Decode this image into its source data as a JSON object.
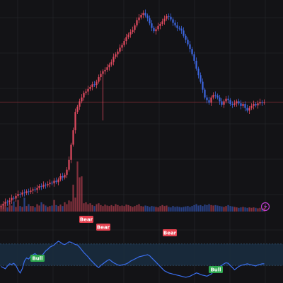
{
  "chart_data": [
    {
      "type": "candlestick",
      "x": [
        0,
        1,
        2,
        3,
        4,
        5,
        6,
        7,
        8,
        9,
        10,
        11,
        12,
        13,
        14,
        15,
        16,
        17,
        18,
        19,
        20,
        21,
        22,
        23,
        24,
        25,
        26,
        27,
        28,
        29,
        30,
        31,
        32,
        33,
        34,
        35,
        36,
        37,
        38,
        39,
        40,
        41,
        42,
        43,
        44,
        45,
        46,
        47,
        48,
        49,
        50,
        51,
        52,
        53,
        54,
        55,
        56,
        57,
        58,
        59,
        60,
        61,
        62,
        63,
        64,
        65,
        66,
        67,
        68,
        69,
        70,
        71,
        72,
        73,
        74,
        75,
        76,
        77,
        78,
        79,
        80,
        81,
        82,
        83,
        84,
        85,
        86,
        87,
        88,
        89,
        90,
        91,
        92,
        93,
        94,
        95,
        96,
        97,
        98,
        99,
        100,
        101,
        102,
        103,
        104,
        105,
        106,
        107,
        108,
        109,
        110,
        111,
        112,
        113,
        114,
        115,
        116,
        117,
        118,
        119,
        120,
        121,
        122,
        123,
        124
      ],
      "close": [
        25,
        28,
        31,
        30,
        33,
        37,
        36,
        40,
        43,
        42,
        45,
        44,
        47,
        46,
        48,
        50,
        49,
        52,
        55,
        54,
        57,
        56,
        58,
        60,
        59,
        63,
        61,
        65,
        70,
        68,
        72,
        80,
        95,
        118,
        140,
        168,
        176,
        184,
        190,
        197,
        199,
        203,
        206,
        210,
        209,
        214,
        221,
        226,
        230,
        232,
        236,
        240,
        244,
        252,
        256,
        260,
        266,
        270,
        276,
        282,
        286,
        290,
        293,
        300,
        308,
        312,
        316,
        319,
        315,
        311,
        303,
        296,
        291,
        294,
        299,
        302,
        306,
        310,
        314,
        313,
        309,
        304,
        300,
        296,
        295,
        292,
        284,
        278,
        271,
        264,
        256,
        246,
        234,
        224,
        214,
        202,
        190,
        186,
        182,
        190,
        194,
        193,
        190,
        184,
        179,
        184,
        188,
        186,
        180,
        179,
        181,
        184,
        181,
        177,
        180,
        174,
        170,
        174,
        177,
        180,
        178,
        181,
        183,
        182,
        183
      ],
      "note": "Vertical scale not printed; values are relative price levels on the chart."
    },
    {
      "type": "bar",
      "name": "volume",
      "values": [
        10,
        12,
        16,
        9,
        18,
        13,
        22,
        10,
        25,
        12,
        10,
        30,
        12,
        16,
        12,
        12,
        9,
        16,
        13,
        20,
        16,
        13,
        10,
        12,
        13,
        25,
        14,
        12,
        15,
        12,
        20,
        16,
        24,
        22,
        58,
        30,
        108,
        74,
        76,
        18,
        20,
        16,
        18,
        14,
        12,
        16,
        18,
        14,
        12,
        15,
        13,
        12,
        14,
        12,
        16,
        14,
        12,
        13,
        12,
        15,
        14,
        12,
        10,
        12,
        14,
        16,
        12,
        11,
        13,
        12,
        10,
        12,
        11,
        10,
        9,
        12,
        14,
        12,
        13,
        10,
        9,
        12,
        10,
        11,
        10,
        9,
        10,
        11,
        12,
        10,
        12,
        14,
        16,
        13,
        14,
        12,
        15,
        14,
        16,
        14,
        13,
        14,
        13,
        12,
        11,
        10,
        12,
        14,
        12,
        11,
        10,
        9,
        8,
        9,
        10,
        9,
        8,
        9,
        8,
        9,
        8,
        7,
        8,
        7,
        8
      ]
    },
    {
      "type": "line",
      "name": "oscillator",
      "values": [
        28,
        26,
        24,
        29,
        33,
        32,
        34,
        30,
        22,
        16,
        24,
        38,
        44,
        42,
        47,
        50,
        52,
        49,
        45,
        47,
        52,
        57,
        60,
        64,
        66,
        68,
        72,
        75,
        73,
        70,
        69,
        71,
        74,
        73,
        71,
        69,
        68,
        64,
        59,
        54,
        50,
        46,
        41,
        37,
        33,
        29,
        26,
        30,
        33,
        36,
        39,
        41,
        38,
        35,
        33,
        31,
        30,
        31,
        32,
        33,
        35,
        38,
        40,
        42,
        44,
        46,
        47,
        48,
        49,
        50,
        48,
        44,
        40,
        36,
        32,
        28,
        24,
        20,
        18,
        16,
        15,
        14,
        13,
        12,
        11,
        10,
        9,
        8,
        9,
        10,
        12,
        14,
        16,
        15,
        13,
        12,
        11,
        10,
        12,
        14,
        18,
        22,
        26,
        28,
        30,
        33,
        35,
        34,
        30,
        26,
        22,
        25,
        28,
        30,
        31,
        32,
        33,
        32,
        31,
        30,
        29,
        31,
        32,
        33,
        33
      ],
      "ylim": [
        0,
        100
      ],
      "band": [
        30,
        70
      ],
      "signals": [
        {
          "label": "Bull",
          "type": "bull"
        },
        {
          "label": "Bear",
          "type": "bear"
        },
        {
          "label": "Bear",
          "type": "bear"
        },
        {
          "label": "Bear",
          "type": "bear"
        },
        {
          "label": "Bull",
          "type": "bull"
        }
      ]
    }
  ],
  "icons": {
    "replay": "lightning-circle-icon"
  },
  "colors": {
    "background": "#131316",
    "grid": "#232428",
    "up": "#e04a5f",
    "down": "#3d67e0",
    "oscillator_line": "#3a6ff0",
    "band_fill": "#1a2c3e",
    "bear_tag": "#e5414f",
    "bull_tag": "#2fa84f",
    "price_line": "#7a2a33",
    "replay_icon": "#c03fcf"
  }
}
